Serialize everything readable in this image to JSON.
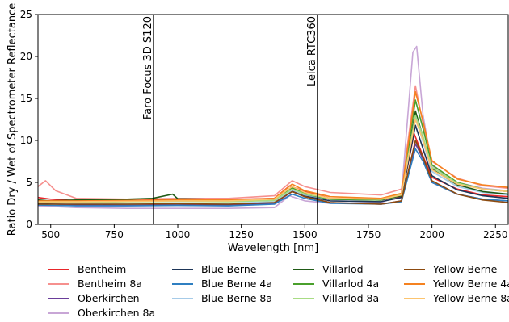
{
  "chart_data": {
    "type": "line",
    "title": "",
    "xlabel": "Wavelength [nm]",
    "ylabel": "Ratio Dry / Wet of Spectrometer Reflectance",
    "xlim": [
      450,
      2300
    ],
    "ylim": [
      0,
      25
    ],
    "xticks": [
      500,
      750,
      1000,
      1250,
      1500,
      1750,
      2000,
      2250
    ],
    "yticks": [
      0,
      5,
      10,
      15,
      20,
      25
    ],
    "grid": false,
    "legend_position": "bottom",
    "vertical_lines": [
      {
        "x": 905,
        "label": "Faro Focus 3D S120"
      },
      {
        "x": 1550,
        "label": "Leica RTC360"
      }
    ],
    "series": [
      {
        "name": "Bentheim",
        "color": "#e8262a",
        "points": [
          [
            450,
            3.2
          ],
          [
            500,
            3.0
          ],
          [
            600,
            2.85
          ],
          [
            800,
            2.9
          ],
          [
            1000,
            2.95
          ],
          [
            1200,
            2.95
          ],
          [
            1380,
            3.1
          ],
          [
            1440,
            4.6
          ],
          [
            1500,
            3.9
          ],
          [
            1600,
            3.1
          ],
          [
            1800,
            2.9
          ],
          [
            1880,
            3.3
          ],
          [
            1930,
            10.8
          ],
          [
            1960,
            8.5
          ],
          [
            2000,
            5.6
          ],
          [
            2100,
            4.2
          ],
          [
            2200,
            3.5
          ],
          [
            2300,
            3.3
          ]
        ]
      },
      {
        "name": "Bentheim 8a",
        "color": "#f6908e",
        "points": [
          [
            450,
            4.5
          ],
          [
            480,
            5.2
          ],
          [
            520,
            4.0
          ],
          [
            600,
            3.1
          ],
          [
            800,
            3.0
          ],
          [
            1000,
            3.1
          ],
          [
            1200,
            3.1
          ],
          [
            1380,
            3.4
          ],
          [
            1450,
            5.2
          ],
          [
            1500,
            4.5
          ],
          [
            1600,
            3.8
          ],
          [
            1800,
            3.5
          ],
          [
            1880,
            4.2
          ],
          [
            1935,
            16.5
          ],
          [
            1965,
            12.0
          ],
          [
            2000,
            7.5
          ],
          [
            2100,
            5.5
          ],
          [
            2200,
            4.6
          ],
          [
            2300,
            4.3
          ]
        ]
      },
      {
        "name": "Oberkirchen",
        "color": "#6a3d9a",
        "points": [
          [
            450,
            2.5
          ],
          [
            600,
            2.3
          ],
          [
            800,
            2.25
          ],
          [
            1000,
            2.3
          ],
          [
            1200,
            2.3
          ],
          [
            1380,
            2.5
          ],
          [
            1450,
            3.9
          ],
          [
            1500,
            3.3
          ],
          [
            1600,
            2.6
          ],
          [
            1800,
            2.4
          ],
          [
            1880,
            2.8
          ],
          [
            1935,
            9.6
          ],
          [
            1965,
            7.8
          ],
          [
            2000,
            5.0
          ],
          [
            2100,
            3.6
          ],
          [
            2200,
            3.0
          ],
          [
            2300,
            2.8
          ]
        ]
      },
      {
        "name": "Oberkirchen 8a",
        "color": "#c8a6d6",
        "points": [
          [
            450,
            2.2
          ],
          [
            600,
            2.0
          ],
          [
            800,
            1.9
          ],
          [
            1000,
            1.9
          ],
          [
            1200,
            1.9
          ],
          [
            1380,
            2.0
          ],
          [
            1440,
            3.4
          ],
          [
            1500,
            2.8
          ],
          [
            1600,
            2.5
          ],
          [
            1800,
            2.6
          ],
          [
            1880,
            3.5
          ],
          [
            1925,
            20.5
          ],
          [
            1940,
            21.2
          ],
          [
            1965,
            13.0
          ],
          [
            2000,
            7.0
          ],
          [
            2100,
            5.0
          ],
          [
            2200,
            4.3
          ],
          [
            2300,
            4.0
          ]
        ]
      },
      {
        "name": "Blue Berne",
        "color": "#1d3557",
        "points": [
          [
            450,
            2.5
          ],
          [
            600,
            2.4
          ],
          [
            800,
            2.4
          ],
          [
            1000,
            2.45
          ],
          [
            1200,
            2.4
          ],
          [
            1380,
            2.6
          ],
          [
            1450,
            4.0
          ],
          [
            1500,
            3.4
          ],
          [
            1600,
            2.8
          ],
          [
            1800,
            2.7
          ],
          [
            1880,
            3.2
          ],
          [
            1935,
            11.8
          ],
          [
            1965,
            9.0
          ],
          [
            2000,
            5.8
          ],
          [
            2100,
            4.1
          ],
          [
            2200,
            3.4
          ],
          [
            2300,
            3.1
          ]
        ]
      },
      {
        "name": "Blue Berne 4a",
        "color": "#2f7fc1",
        "points": [
          [
            450,
            2.3
          ],
          [
            600,
            2.2
          ],
          [
            800,
            2.2
          ],
          [
            1000,
            2.25
          ],
          [
            1200,
            2.2
          ],
          [
            1380,
            2.4
          ],
          [
            1450,
            3.6
          ],
          [
            1500,
            3.1
          ],
          [
            1600,
            2.5
          ],
          [
            1800,
            2.4
          ],
          [
            1880,
            2.7
          ],
          [
            1935,
            9.0
          ],
          [
            1965,
            7.5
          ],
          [
            2000,
            5.0
          ],
          [
            2100,
            3.6
          ],
          [
            2200,
            3.0
          ],
          [
            2300,
            2.8
          ]
        ]
      },
      {
        "name": "Blue Berne 8a",
        "color": "#a6cbe8",
        "points": [
          [
            450,
            2.6
          ],
          [
            600,
            2.5
          ],
          [
            800,
            2.5
          ],
          [
            1000,
            2.55
          ],
          [
            1200,
            2.5
          ],
          [
            1380,
            2.7
          ],
          [
            1450,
            4.1
          ],
          [
            1500,
            3.5
          ],
          [
            1600,
            3.0
          ],
          [
            1800,
            2.9
          ],
          [
            1880,
            3.5
          ],
          [
            1935,
            12.8
          ],
          [
            1965,
            9.8
          ],
          [
            2000,
            6.3
          ],
          [
            2100,
            4.5
          ],
          [
            2200,
            3.8
          ],
          [
            2300,
            3.5
          ]
        ]
      },
      {
        "name": "Villarlod",
        "color": "#1f5a16",
        "points": [
          [
            450,
            2.9
          ],
          [
            500,
            2.8
          ],
          [
            600,
            2.9
          ],
          [
            800,
            3.0
          ],
          [
            900,
            3.1
          ],
          [
            980,
            3.6
          ],
          [
            1000,
            3.05
          ],
          [
            1200,
            2.95
          ],
          [
            1380,
            3.0
          ],
          [
            1450,
            4.3
          ],
          [
            1500,
            3.6
          ],
          [
            1600,
            3.0
          ],
          [
            1800,
            2.9
          ],
          [
            1880,
            3.4
          ],
          [
            1935,
            13.5
          ],
          [
            1965,
            10.4
          ],
          [
            2000,
            6.6
          ],
          [
            2100,
            4.7
          ],
          [
            2200,
            3.9
          ],
          [
            2300,
            3.6
          ]
        ]
      },
      {
        "name": "Villarlod 4a",
        "color": "#4aa02c",
        "points": [
          [
            450,
            2.7
          ],
          [
            600,
            2.7
          ],
          [
            800,
            2.8
          ],
          [
            1000,
            2.9
          ],
          [
            1200,
            2.85
          ],
          [
            1380,
            2.95
          ],
          [
            1450,
            4.4
          ],
          [
            1500,
            3.7
          ],
          [
            1600,
            3.0
          ],
          [
            1800,
            2.9
          ],
          [
            1880,
            3.5
          ],
          [
            1935,
            14.8
          ],
          [
            1965,
            11.4
          ],
          [
            2000,
            7.1
          ],
          [
            2100,
            5.0
          ],
          [
            2200,
            4.2
          ],
          [
            2300,
            3.9
          ]
        ]
      },
      {
        "name": "Villarlod 8a",
        "color": "#a8dc84",
        "points": [
          [
            450,
            2.6
          ],
          [
            600,
            2.6
          ],
          [
            800,
            2.7
          ],
          [
            1000,
            2.75
          ],
          [
            1200,
            2.7
          ],
          [
            1380,
            2.85
          ],
          [
            1450,
            4.2
          ],
          [
            1500,
            3.6
          ],
          [
            1600,
            3.1
          ],
          [
            1800,
            3.0
          ],
          [
            1880,
            3.6
          ],
          [
            1935,
            13.0
          ],
          [
            1965,
            10.5
          ],
          [
            2000,
            6.8
          ],
          [
            2100,
            4.9
          ],
          [
            2200,
            4.2
          ],
          [
            2300,
            4.0
          ]
        ]
      },
      {
        "name": "Yellow Berne",
        "color": "#8c4a0f",
        "points": [
          [
            450,
            2.4
          ],
          [
            600,
            2.4
          ],
          [
            800,
            2.4
          ],
          [
            1000,
            2.45
          ],
          [
            1200,
            2.4
          ],
          [
            1380,
            2.6
          ],
          [
            1450,
            3.9
          ],
          [
            1500,
            3.3
          ],
          [
            1600,
            2.6
          ],
          [
            1800,
            2.4
          ],
          [
            1880,
            2.8
          ],
          [
            1935,
            10.0
          ],
          [
            1965,
            8.0
          ],
          [
            2000,
            5.2
          ],
          [
            2100,
            3.6
          ],
          [
            2200,
            2.9
          ],
          [
            2300,
            2.6
          ]
        ]
      },
      {
        "name": "Yellow Berne 4a",
        "color": "#f58220",
        "points": [
          [
            450,
            2.8
          ],
          [
            600,
            2.8
          ],
          [
            800,
            2.85
          ],
          [
            1000,
            2.9
          ],
          [
            1200,
            2.9
          ],
          [
            1380,
            3.1
          ],
          [
            1450,
            4.8
          ],
          [
            1500,
            4.0
          ],
          [
            1600,
            3.3
          ],
          [
            1800,
            3.1
          ],
          [
            1880,
            3.7
          ],
          [
            1935,
            15.8
          ],
          [
            1965,
            12.3
          ],
          [
            2000,
            7.6
          ],
          [
            2100,
            5.4
          ],
          [
            2200,
            4.7
          ],
          [
            2300,
            4.4
          ]
        ]
      },
      {
        "name": "Yellow Berne 8a",
        "color": "#fcc46f",
        "points": [
          [
            450,
            2.7
          ],
          [
            600,
            2.7
          ],
          [
            800,
            2.75
          ],
          [
            1000,
            2.8
          ],
          [
            1200,
            2.8
          ],
          [
            1380,
            3.0
          ],
          [
            1450,
            4.5
          ],
          [
            1500,
            3.8
          ],
          [
            1600,
            3.1
          ],
          [
            1800,
            3.0
          ],
          [
            1880,
            3.5
          ],
          [
            1935,
            12.5
          ],
          [
            1965,
            10.0
          ],
          [
            2000,
            6.5
          ],
          [
            2100,
            4.8
          ],
          [
            2200,
            4.2
          ],
          [
            2300,
            3.9
          ]
        ]
      }
    ]
  }
}
